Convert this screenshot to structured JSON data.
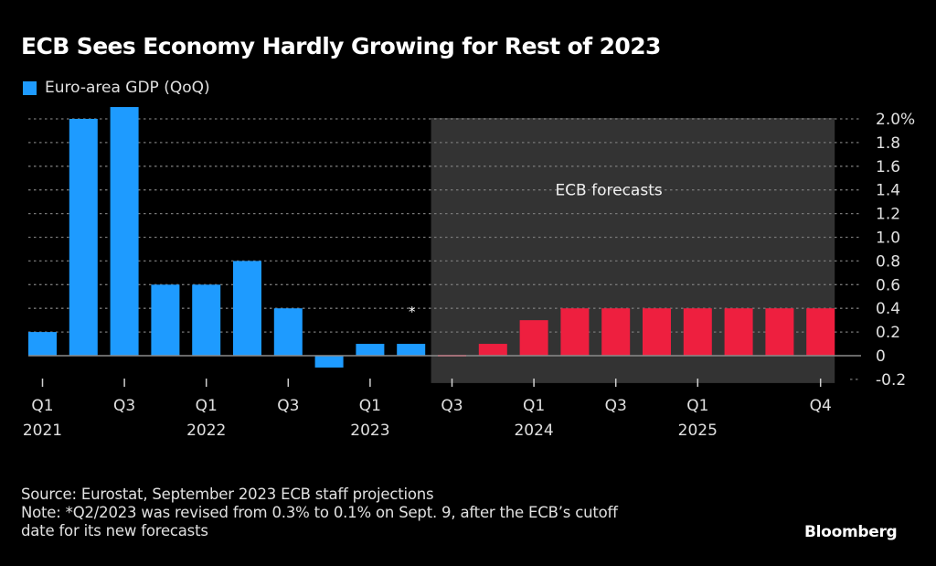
{
  "chart_data": {
    "type": "bar",
    "title": "ECB Sees Economy Hardly Growing for Rest of 2023",
    "legend": [
      {
        "label": "Euro-area GDP (QoQ)",
        "color": "#1e9bff"
      }
    ],
    "legend_position": "top-left",
    "xlabel": "",
    "ylabel": "",
    "ylim": [
      -0.2,
      2.0
    ],
    "yticks": [
      -0.2,
      0,
      0.2,
      0.4,
      0.6,
      0.8,
      1.0,
      1.2,
      1.4,
      1.6,
      1.8,
      2.0
    ],
    "ytick_labels": [
      "-0.2",
      "0",
      "0.2",
      "0.4",
      "0.6",
      "0.8",
      "1.0",
      "1.2",
      "1.4",
      "1.6",
      "1.8",
      "2.0%"
    ],
    "y_axis_side": "right",
    "grid": true,
    "categories": [
      "Q1 2021",
      "Q2 2021",
      "Q3 2021",
      "Q4 2021",
      "Q1 2022",
      "Q2 2022",
      "Q3 2022",
      "Q4 2022",
      "Q1 2023",
      "Q2 2023",
      "Q3 2023",
      "Q4 2023",
      "Q1 2024",
      "Q2 2024",
      "Q3 2024",
      "Q4 2024",
      "Q1 2025",
      "Q2 2025",
      "Q3 2025",
      "Q4 2025"
    ],
    "series": [
      {
        "name": "Euro-area GDP (QoQ)",
        "values": [
          0.2,
          2.0,
          2.1,
          0.6,
          0.6,
          0.8,
          0.4,
          -0.1,
          0.1,
          0.1,
          0.0,
          0.1,
          0.3,
          0.4,
          0.4,
          0.4,
          0.4,
          0.4,
          0.4,
          0.4
        ],
        "kind": [
          "actual",
          "actual",
          "actual",
          "actual",
          "actual",
          "actual",
          "actual",
          "actual",
          "actual",
          "actual",
          "forecast",
          "forecast",
          "forecast",
          "forecast",
          "forecast",
          "forecast",
          "forecast",
          "forecast",
          "forecast",
          "forecast"
        ]
      }
    ],
    "colors": {
      "actual": "#1e9bff",
      "forecast": "#ee1f3f",
      "forecast_shade": "#333333",
      "grid": "#777777",
      "zero_line": "#8a8a8a"
    },
    "xticks": [
      {
        "index": 0,
        "line1": "Q1",
        "line2": "2021"
      },
      {
        "index": 2,
        "line1": "Q3",
        "line2": ""
      },
      {
        "index": 4,
        "line1": "Q1",
        "line2": "2022"
      },
      {
        "index": 6,
        "line1": "Q3",
        "line2": ""
      },
      {
        "index": 8,
        "line1": "Q1",
        "line2": "2023"
      },
      {
        "index": 10,
        "line1": "Q3",
        "line2": ""
      },
      {
        "index": 12,
        "line1": "Q1",
        "line2": "2024"
      },
      {
        "index": 14,
        "line1": "Q3",
        "line2": ""
      },
      {
        "index": 16,
        "line1": "Q1",
        "line2": "2025"
      },
      {
        "index": 19,
        "line1": "Q4",
        "line2": ""
      }
    ],
    "annotations": [
      {
        "text": "ECB forecasts",
        "region_start_index": 10,
        "region_end_index": 19
      },
      {
        "text": "*",
        "index": 9,
        "y": 0.4
      }
    ]
  },
  "header": {
    "title": "ECB Sees Economy Hardly Growing for Rest of 2023",
    "legend_label": "Euro-area GDP (QoQ)"
  },
  "footer": {
    "source": "Source: Eurostat, September 2023 ECB staff projections",
    "note_line1": "Note: *Q2/2023 was revised from 0.3% to 0.1% on Sept. 9, after the ECB’s cutoff",
    "note_line2": "date for its new forecasts",
    "brand": "Bloomberg"
  }
}
